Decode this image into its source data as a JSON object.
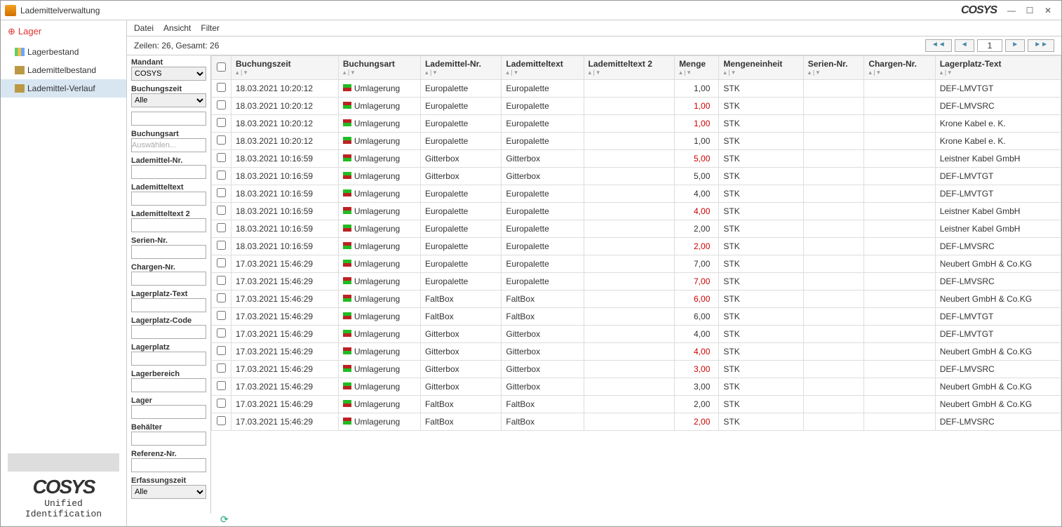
{
  "window": {
    "title": "Lademittelverwaltung",
    "logo": "COSYS"
  },
  "winbuttons": {
    "min": "—",
    "max": "☐",
    "close": "✕"
  },
  "sidebar": {
    "header": "Lager",
    "items": [
      {
        "label": "Lagerbestand",
        "icon": "bars"
      },
      {
        "label": "Lademittelbestand",
        "icon": "box"
      },
      {
        "label": "Lademittel-Verlauf",
        "icon": "box"
      }
    ],
    "selected_index": 2,
    "brand": "COSYS",
    "tagline": "Unified Identification"
  },
  "menubar": [
    "Datei",
    "Ansicht",
    "Filter"
  ],
  "status": {
    "text": "Zeilen: 26, Gesamt: 26",
    "page": "1"
  },
  "pagerbtns": {
    "first": "◄◄",
    "prev": "◄",
    "next": "►",
    "last": "►►"
  },
  "filters": [
    {
      "label": "Mandant",
      "type": "select",
      "value": "COSYS"
    },
    {
      "label": "Buchungszeit",
      "type": "select",
      "value": "Alle"
    },
    {
      "label": "",
      "type": "text",
      "value": ""
    },
    {
      "label": "Buchungsart",
      "type": "text",
      "placeholder": "Auswählen..."
    },
    {
      "label": "Lademittel-Nr.",
      "type": "text"
    },
    {
      "label": "Lademitteltext",
      "type": "text"
    },
    {
      "label": "Lademitteltext 2",
      "type": "text"
    },
    {
      "label": "Serien-Nr.",
      "type": "text"
    },
    {
      "label": "Chargen-Nr.",
      "type": "text"
    },
    {
      "label": "Lagerplatz-Text",
      "type": "text"
    },
    {
      "label": "Lagerplatz-Code",
      "type": "text"
    },
    {
      "label": "Lagerplatz",
      "type": "text"
    },
    {
      "label": "Lagerbereich",
      "type": "text"
    },
    {
      "label": "Lager",
      "type": "text"
    },
    {
      "label": "Behälter",
      "type": "text"
    },
    {
      "label": "Referenz-Nr.",
      "type": "text"
    },
    {
      "label": "Erfassungszeit",
      "type": "select",
      "value": "Alle"
    }
  ],
  "columns": [
    "Buchungszeit",
    "Buchungsart",
    "Lademittel-Nr.",
    "Lademitteltext",
    "Lademitteltext 2",
    "Menge",
    "Mengeneinheit",
    "Serien-Nr.",
    "Chargen-Nr.",
    "Lagerplatz-Text"
  ],
  "sort_glyph": "▴ | ▾",
  "rows": [
    {
      "zeit": "18.03.2021 10:20:12",
      "dir": "in",
      "art": "Umlagerung",
      "nr": "Europalette",
      "txt": "Europalette",
      "menge": "1,00",
      "neg": false,
      "me": "STK",
      "lp": "DEF-LMVTGT"
    },
    {
      "zeit": "18.03.2021 10:20:12",
      "dir": "out",
      "art": "Umlagerung",
      "nr": "Europalette",
      "txt": "Europalette",
      "menge": "1,00",
      "neg": true,
      "me": "STK",
      "lp": "DEF-LMVSRC"
    },
    {
      "zeit": "18.03.2021 10:20:12",
      "dir": "out",
      "art": "Umlagerung",
      "nr": "Europalette",
      "txt": "Europalette",
      "menge": "1,00",
      "neg": true,
      "me": "STK",
      "lp": "Krone Kabel e. K."
    },
    {
      "zeit": "18.03.2021 10:20:12",
      "dir": "in",
      "art": "Umlagerung",
      "nr": "Europalette",
      "txt": "Europalette",
      "menge": "1,00",
      "neg": false,
      "me": "STK",
      "lp": "Krone Kabel e. K."
    },
    {
      "zeit": "18.03.2021 10:16:59",
      "dir": "out",
      "art": "Umlagerung",
      "nr": "Gitterbox",
      "txt": "Gitterbox",
      "menge": "5,00",
      "neg": true,
      "me": "STK",
      "lp": "Leistner Kabel GmbH"
    },
    {
      "zeit": "18.03.2021 10:16:59",
      "dir": "in",
      "art": "Umlagerung",
      "nr": "Gitterbox",
      "txt": "Gitterbox",
      "menge": "5,00",
      "neg": false,
      "me": "STK",
      "lp": "DEF-LMVTGT"
    },
    {
      "zeit": "18.03.2021 10:16:59",
      "dir": "in",
      "art": "Umlagerung",
      "nr": "Europalette",
      "txt": "Europalette",
      "menge": "4,00",
      "neg": false,
      "me": "STK",
      "lp": "DEF-LMVTGT"
    },
    {
      "zeit": "18.03.2021 10:16:59",
      "dir": "out",
      "art": "Umlagerung",
      "nr": "Europalette",
      "txt": "Europalette",
      "menge": "4,00",
      "neg": true,
      "me": "STK",
      "lp": "Leistner Kabel GmbH"
    },
    {
      "zeit": "18.03.2021 10:16:59",
      "dir": "in",
      "art": "Umlagerung",
      "nr": "Europalette",
      "txt": "Europalette",
      "menge": "2,00",
      "neg": false,
      "me": "STK",
      "lp": "Leistner Kabel GmbH"
    },
    {
      "zeit": "18.03.2021 10:16:59",
      "dir": "out",
      "art": "Umlagerung",
      "nr": "Europalette",
      "txt": "Europalette",
      "menge": "2,00",
      "neg": true,
      "me": "STK",
      "lp": "DEF-LMVSRC"
    },
    {
      "zeit": "17.03.2021 15:46:29",
      "dir": "in",
      "art": "Umlagerung",
      "nr": "Europalette",
      "txt": "Europalette",
      "menge": "7,00",
      "neg": false,
      "me": "STK",
      "lp": "Neubert GmbH & Co.KG"
    },
    {
      "zeit": "17.03.2021 15:46:29",
      "dir": "out",
      "art": "Umlagerung",
      "nr": "Europalette",
      "txt": "Europalette",
      "menge": "7,00",
      "neg": true,
      "me": "STK",
      "lp": "DEF-LMVSRC"
    },
    {
      "zeit": "17.03.2021 15:46:29",
      "dir": "out",
      "art": "Umlagerung",
      "nr": "FaltBox",
      "txt": "FaltBox",
      "menge": "6,00",
      "neg": true,
      "me": "STK",
      "lp": "Neubert GmbH & Co.KG"
    },
    {
      "zeit": "17.03.2021 15:46:29",
      "dir": "in",
      "art": "Umlagerung",
      "nr": "FaltBox",
      "txt": "FaltBox",
      "menge": "6,00",
      "neg": false,
      "me": "STK",
      "lp": "DEF-LMVTGT"
    },
    {
      "zeit": "17.03.2021 15:46:29",
      "dir": "in",
      "art": "Umlagerung",
      "nr": "Gitterbox",
      "txt": "Gitterbox",
      "menge": "4,00",
      "neg": false,
      "me": "STK",
      "lp": "DEF-LMVTGT"
    },
    {
      "zeit": "17.03.2021 15:46:29",
      "dir": "out",
      "art": "Umlagerung",
      "nr": "Gitterbox",
      "txt": "Gitterbox",
      "menge": "4,00",
      "neg": true,
      "me": "STK",
      "lp": "Neubert GmbH & Co.KG"
    },
    {
      "zeit": "17.03.2021 15:46:29",
      "dir": "out",
      "art": "Umlagerung",
      "nr": "Gitterbox",
      "txt": "Gitterbox",
      "menge": "3,00",
      "neg": true,
      "me": "STK",
      "lp": "DEF-LMVSRC"
    },
    {
      "zeit": "17.03.2021 15:46:29",
      "dir": "in",
      "art": "Umlagerung",
      "nr": "Gitterbox",
      "txt": "Gitterbox",
      "menge": "3,00",
      "neg": false,
      "me": "STK",
      "lp": "Neubert GmbH & Co.KG"
    },
    {
      "zeit": "17.03.2021 15:46:29",
      "dir": "in",
      "art": "Umlagerung",
      "nr": "FaltBox",
      "txt": "FaltBox",
      "menge": "2,00",
      "neg": false,
      "me": "STK",
      "lp": "Neubert GmbH & Co.KG"
    },
    {
      "zeit": "17.03.2021 15:46:29",
      "dir": "out",
      "art": "Umlagerung",
      "nr": "FaltBox",
      "txt": "FaltBox",
      "menge": "2,00",
      "neg": true,
      "me": "STK",
      "lp": "DEF-LMVSRC"
    }
  ]
}
